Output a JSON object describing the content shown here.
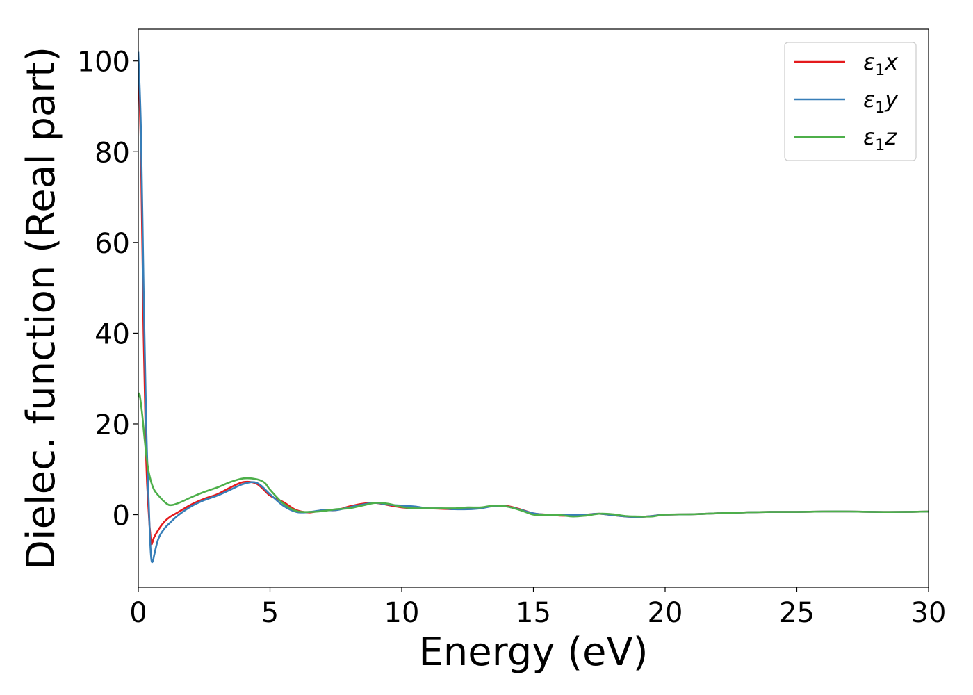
{
  "chart_data": {
    "type": "line",
    "title": "",
    "xlabel": "Energy (eV)",
    "ylabel": "Dielec. function (Real part)",
    "xlim": [
      0,
      30
    ],
    "ylim": [
      -16,
      107
    ],
    "xticks": [
      0,
      5,
      10,
      15,
      20,
      25,
      30
    ],
    "yticks": [
      0,
      20,
      40,
      60,
      80,
      100
    ],
    "grid": false,
    "legend_position": "top-right",
    "series": [
      {
        "name": "ε₁x",
        "label_parts": {
          "symbol": "ε",
          "sub": "1",
          "suffix": "x"
        },
        "color": "#e41a1c",
        "x": [
          0,
          0.1,
          0.2,
          0.3,
          0.4,
          0.45,
          0.5,
          0.6,
          0.8,
          1.0,
          1.2,
          1.5,
          2.0,
          2.5,
          3.0,
          3.5,
          4.0,
          4.5,
          5.0,
          5.5,
          6.0,
          6.5,
          7.0,
          7.5,
          8.0,
          8.5,
          9.0,
          9.5,
          10.0,
          10.5,
          11.0,
          11.5,
          12.0,
          12.5,
          13.0,
          13.5,
          14.0,
          14.5,
          15.0,
          15.5,
          16.0,
          16.5,
          17.0,
          17.5,
          18.0,
          18.5,
          19.0,
          19.5,
          20.0,
          21.0,
          22.0,
          23.0,
          24.0,
          25.0,
          26.0,
          27.0,
          28.0,
          29.0,
          30.0
        ],
        "y": [
          100,
          80,
          40,
          12,
          0,
          -4,
          -6.5,
          -5,
          -3,
          -1.5,
          -0.5,
          0.5,
          2.2,
          3.5,
          4.5,
          6,
          7.2,
          6.8,
          4.2,
          2.8,
          1,
          0.5,
          1,
          1,
          1.8,
          2.4,
          2.6,
          2.1,
          1.6,
          1.4,
          1.4,
          1.3,
          1.2,
          1.4,
          1.5,
          2,
          1.9,
          1.2,
          0.3,
          0,
          -0.2,
          -0.2,
          0,
          0.2,
          -0.1,
          -0.4,
          -0.5,
          -0.3,
          0,
          0.1,
          0.3,
          0.5,
          0.6,
          0.6,
          0.7,
          0.7,
          0.6,
          0.6,
          0.7
        ]
      },
      {
        "name": "ε₁y",
        "label_parts": {
          "symbol": "ε",
          "sub": "1",
          "suffix": "y"
        },
        "color": "#377eb8",
        "x": [
          0,
          0.1,
          0.2,
          0.3,
          0.4,
          0.45,
          0.5,
          0.55,
          0.6,
          0.7,
          0.8,
          1.0,
          1.2,
          1.5,
          2.0,
          2.5,
          3.0,
          3.5,
          4.0,
          4.5,
          5.0,
          5.5,
          6.0,
          6.5,
          7.0,
          7.5,
          8.0,
          8.5,
          9.0,
          9.5,
          10.0,
          10.5,
          11.0,
          11.5,
          12.0,
          12.5,
          13.0,
          13.5,
          14.0,
          14.5,
          15.0,
          15.5,
          16.0,
          16.5,
          17.0,
          17.5,
          18.0,
          18.5,
          19.0,
          19.5,
          20.0,
          21.0,
          22.0,
          23.0,
          24.0,
          25.0,
          26.0,
          27.0,
          28.0,
          29.0,
          30.0
        ],
        "y": [
          102,
          85,
          50,
          20,
          2,
          -6,
          -10,
          -10.3,
          -9,
          -6.5,
          -4.8,
          -3,
          -1.8,
          -0.2,
          1.8,
          3.2,
          4.2,
          5.5,
          6.8,
          7,
          4.5,
          2,
          0.6,
          0.6,
          1,
          1,
          1.6,
          2.2,
          2.6,
          2.2,
          2,
          1.8,
          1.4,
          1.4,
          1.2,
          1.2,
          1.4,
          1.9,
          1.8,
          1.1,
          0.3,
          0,
          -0.1,
          -0.1,
          0,
          0.2,
          -0.1,
          -0.4,
          -0.5,
          -0.3,
          0,
          0.1,
          0.3,
          0.5,
          0.6,
          0.6,
          0.7,
          0.7,
          0.6,
          0.6,
          0.7
        ]
      },
      {
        "name": "ε₁z",
        "label_parts": {
          "symbol": "ε",
          "sub": "1",
          "suffix": "z"
        },
        "color": "#4daf4a",
        "x": [
          0,
          0.05,
          0.15,
          0.25,
          0.35,
          0.45,
          0.6,
          0.8,
          1.0,
          1.2,
          1.5,
          2.0,
          2.5,
          3.0,
          3.5,
          4.0,
          4.5,
          4.8,
          5.0,
          5.5,
          6.0,
          6.5,
          7.0,
          7.5,
          8.0,
          8.5,
          9.0,
          9.5,
          10.0,
          10.5,
          11.0,
          11.5,
          12.0,
          12.5,
          13.0,
          13.5,
          14.0,
          14.5,
          15.0,
          15.5,
          16.0,
          16.5,
          17.0,
          17.5,
          18.0,
          18.5,
          19.0,
          19.5,
          20.0,
          21.0,
          22.0,
          23.0,
          24.0,
          25.0,
          26.0,
          27.0,
          28.0,
          29.0,
          30.0
        ],
        "y": [
          26,
          26.5,
          22,
          16,
          11,
          8,
          5.5,
          4,
          2.8,
          2.1,
          2.5,
          3.8,
          5,
          6,
          7.2,
          8,
          7.8,
          7,
          5.5,
          2.5,
          0.8,
          0.6,
          0.8,
          1.2,
          1.4,
          2,
          2.6,
          2.4,
          1.7,
          1.4,
          1.4,
          1.4,
          1.4,
          1.6,
          1.6,
          2,
          1.8,
          1,
          0,
          -0.1,
          -0.1,
          -0.4,
          -0.2,
          0.2,
          0.1,
          -0.3,
          -0.4,
          -0.4,
          0,
          0.1,
          0.3,
          0.5,
          0.6,
          0.6,
          0.7,
          0.7,
          0.6,
          0.6,
          0.7
        ]
      }
    ]
  }
}
